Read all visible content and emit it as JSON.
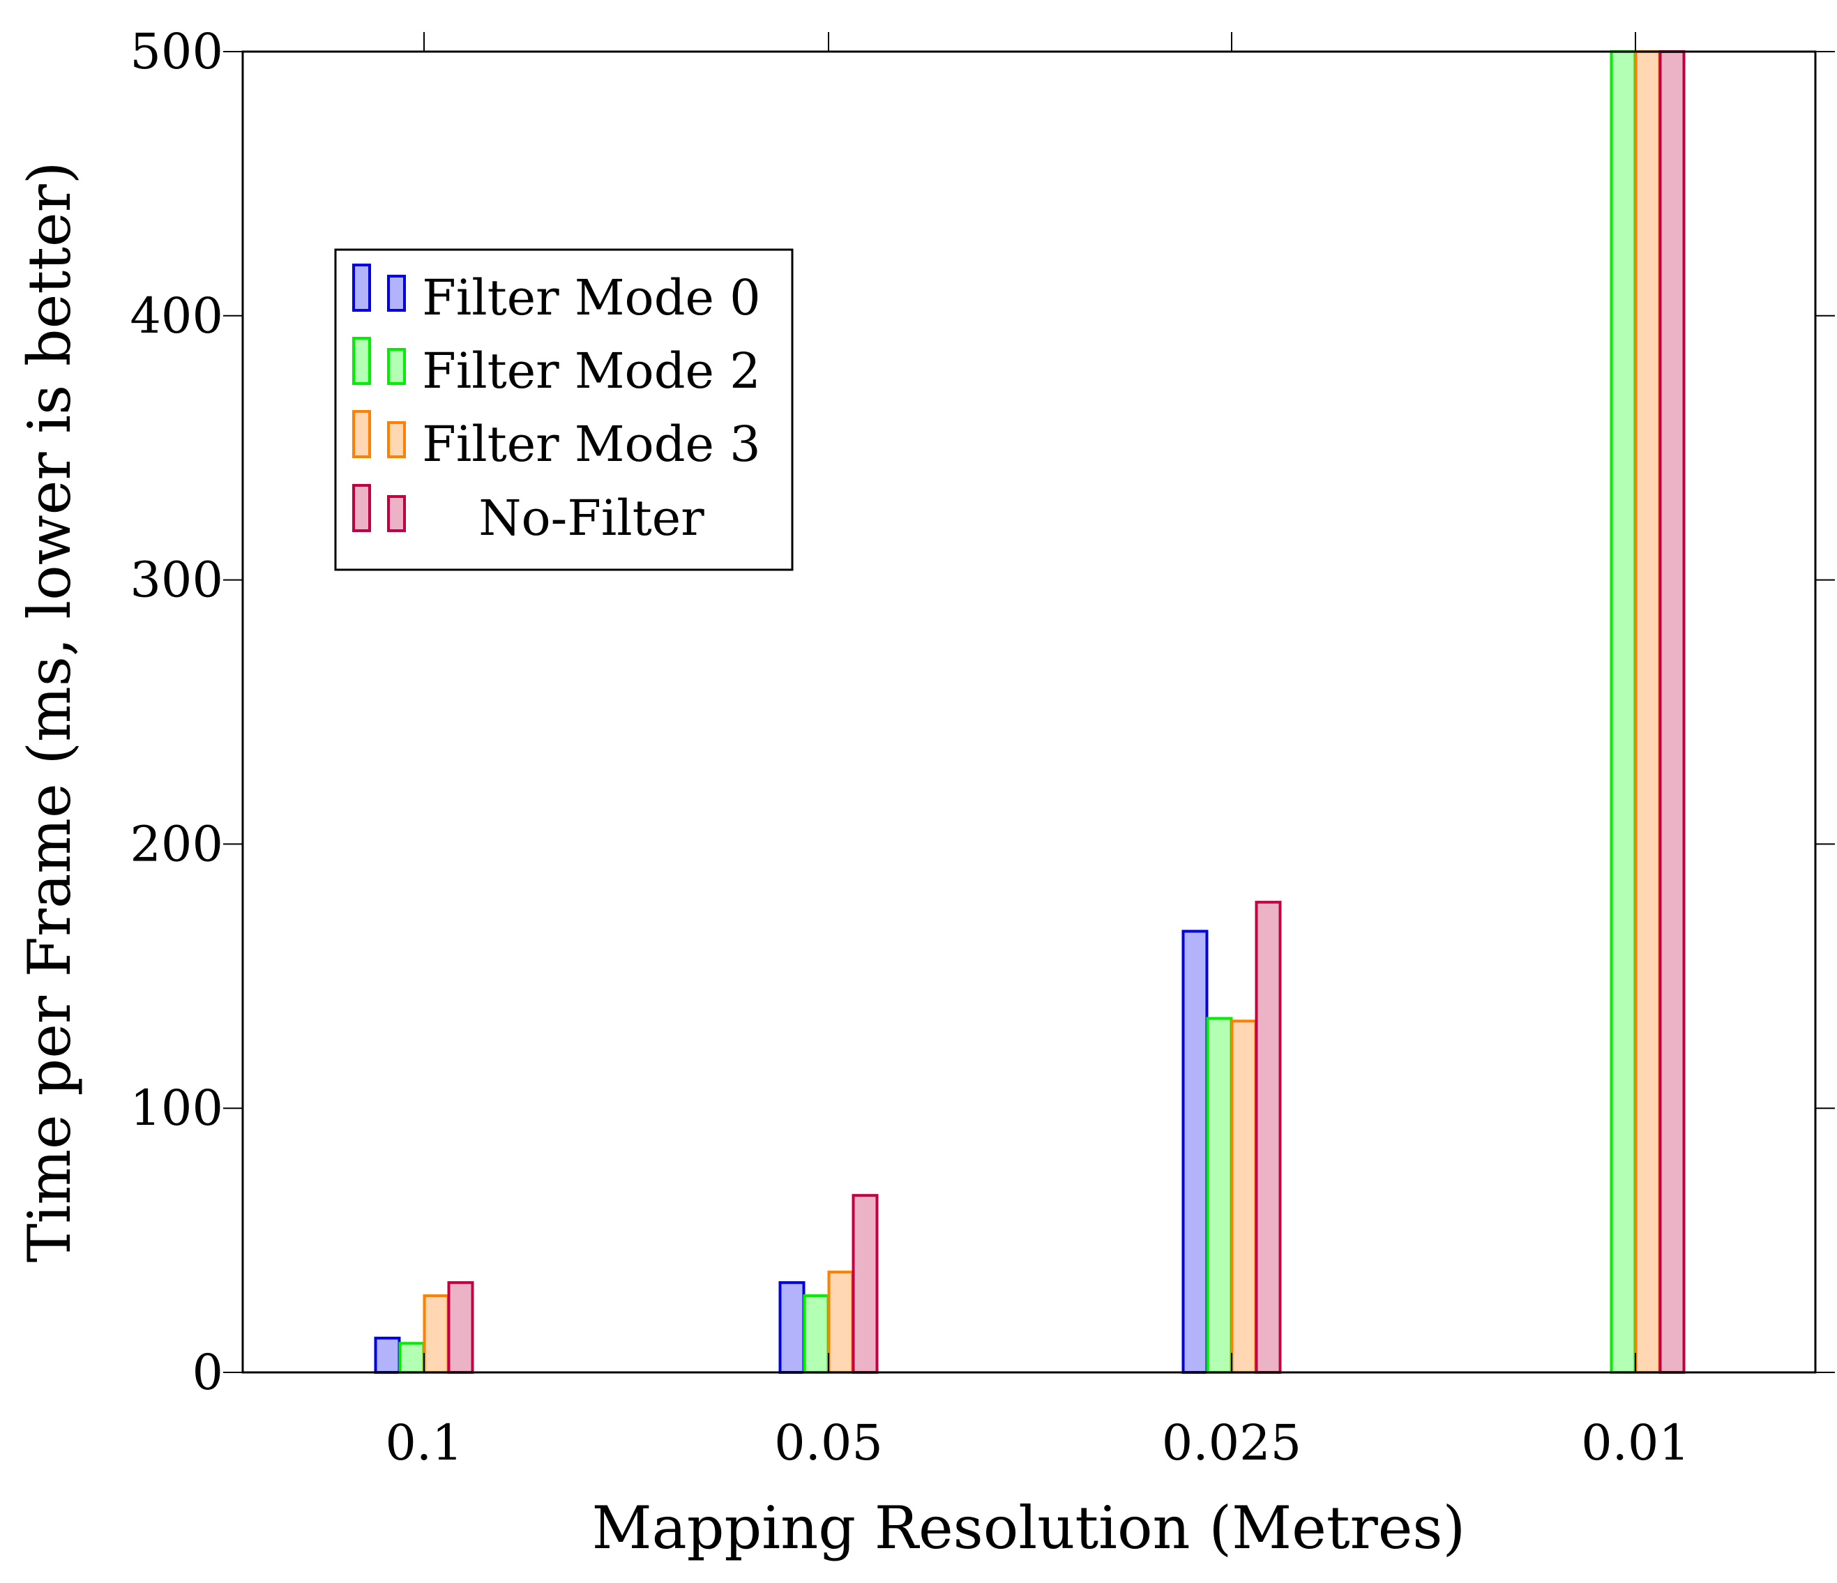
{
  "chart_data": {
    "type": "bar",
    "title": "",
    "xlabel": "Mapping Resolution (Metres)",
    "ylabel": "Time per Frame (ms, lower is better)",
    "categories": [
      "0.1",
      "0.05",
      "0.025",
      "0.01"
    ],
    "ylim": [
      0,
      500
    ],
    "yticks": [
      "0",
      "100",
      "200",
      "300",
      "400",
      "500"
    ],
    "grid": false,
    "legend_position": "top-left",
    "series": [
      {
        "name": "Filter Mode 0",
        "stroke": "#0000e0",
        "fill": "#b3b3fb",
        "values": [
          13,
          34,
          167,
          0
        ]
      },
      {
        "name": "Filter Mode 2",
        "stroke": "#00ee00",
        "fill": "#b3ffb3",
        "values": [
          11,
          29,
          134,
          500
        ]
      },
      {
        "name": "Filter Mode 3",
        "stroke": "#ff8000",
        "fill": "#ffd8b3",
        "values": [
          29,
          38,
          133,
          500
        ]
      },
      {
        "name": "No-Filter",
        "stroke": "#c00040",
        "fill": "#ecb3c6",
        "values": [
          34,
          67,
          178,
          500
        ]
      }
    ]
  }
}
